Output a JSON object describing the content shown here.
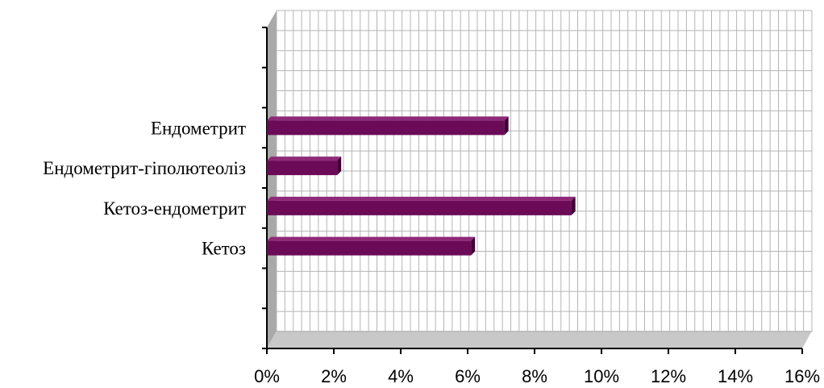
{
  "chart_data": {
    "type": "bar",
    "orientation": "horizontal",
    "style": "3d",
    "categories": [
      "Ендометрит",
      "Ендометрит-гіполютеоліз",
      "Кетоз-ендометрит",
      "Кетоз"
    ],
    "values": [
      7.1,
      2.1,
      9.1,
      6.1
    ],
    "unit": "%",
    "xlim": [
      0,
      16
    ],
    "xticks": [
      "0%",
      "2%",
      "4%",
      "6%",
      "8%",
      "10%",
      "12%",
      "14%",
      "16%"
    ],
    "grid": true,
    "colors": {
      "bar": "#6b0a57",
      "bar_top": "#8e2a78",
      "bar_end": "#3f0034",
      "grid": "#b5b5b5",
      "floor": "#c8c8c8",
      "wall": "#a9a9a9"
    }
  }
}
